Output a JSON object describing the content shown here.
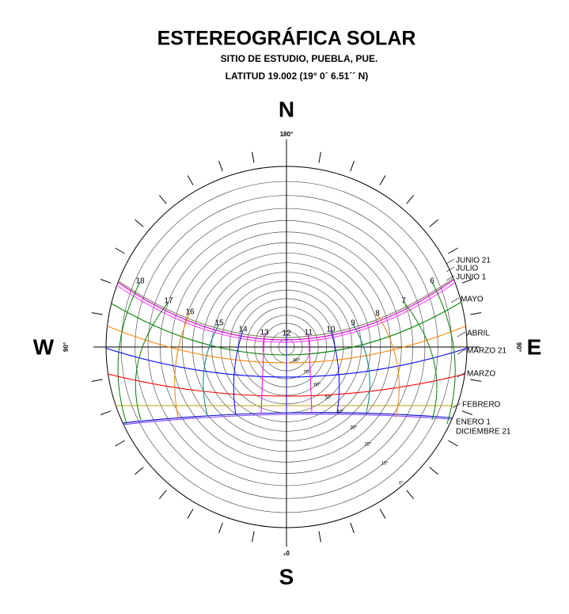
{
  "header": {
    "title": "ESTEREOGRÁFICA SOLAR",
    "subtitle": "SITIO DE ESTUDIO, PUEBLA, PUE.",
    "latitude": "LATITUD 19.002  (19° 0´ 6.51´´ N)"
  },
  "cardinals": {
    "north": "N",
    "south": "S",
    "west": "W",
    "east": "E"
  },
  "azimuth_labels": {
    "north": "180°",
    "south": "0°",
    "west": "90°",
    "east": "90°"
  },
  "months": [
    "JUNIO 21",
    "JULIO",
    "JUNIO 1",
    "MAYO",
    "ABRIL",
    "MARZO 21",
    "MARZO",
    "FEBRERO",
    "ENERO 1",
    "DICIEMBRE 21"
  ],
  "hours": [
    "18",
    "17",
    "16",
    "15",
    "14",
    "13",
    "12",
    "11",
    "10",
    "9",
    "8",
    "7",
    "6"
  ],
  "altitudes": [
    "80°",
    "70°",
    "60°",
    "50°",
    "40°",
    "30°",
    "20°",
    "10°",
    "0°"
  ]
}
